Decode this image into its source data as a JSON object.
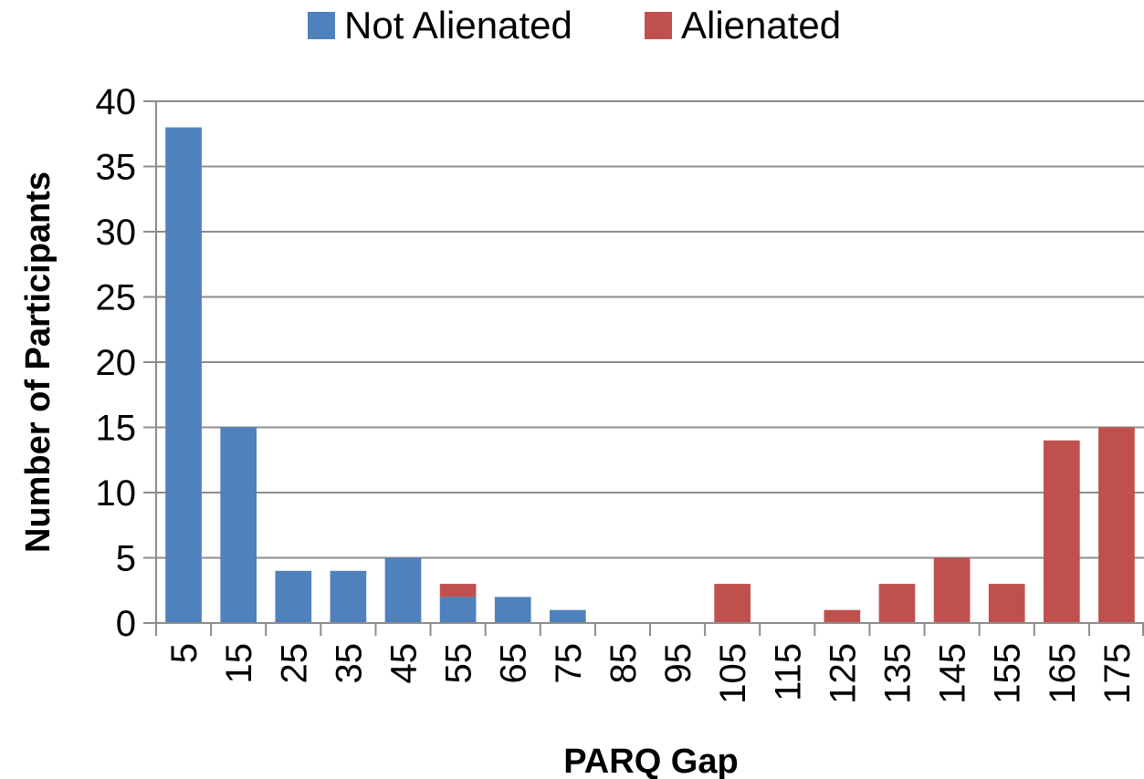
{
  "chart_data": {
    "type": "bar",
    "stacked": true,
    "title": "",
    "xlabel": "PARQ Gap",
    "ylabel": "Number of Participants",
    "categories": [
      "5",
      "15",
      "25",
      "35",
      "45",
      "55",
      "65",
      "75",
      "85",
      "95",
      "105",
      "115",
      "125",
      "135",
      "145",
      "155",
      "165",
      "175"
    ],
    "series": [
      {
        "name": "Not Alienated",
        "color": "#4f81bd",
        "values": [
          38,
          15,
          4,
          4,
          5,
          2,
          2,
          1,
          0,
          0,
          0,
          0,
          0,
          0,
          0,
          0,
          0,
          0
        ]
      },
      {
        "name": "Alienated",
        "color": "#c0504d",
        "values": [
          0,
          0,
          0,
          0,
          0,
          1,
          0,
          0,
          0,
          0,
          3,
          0,
          1,
          3,
          5,
          3,
          14,
          15
        ]
      }
    ],
    "ylim": [
      0,
      40
    ],
    "yticks": [
      0,
      5,
      10,
      15,
      20,
      25,
      30,
      35,
      40
    ],
    "grid": true,
    "legend_position": "top-center"
  }
}
